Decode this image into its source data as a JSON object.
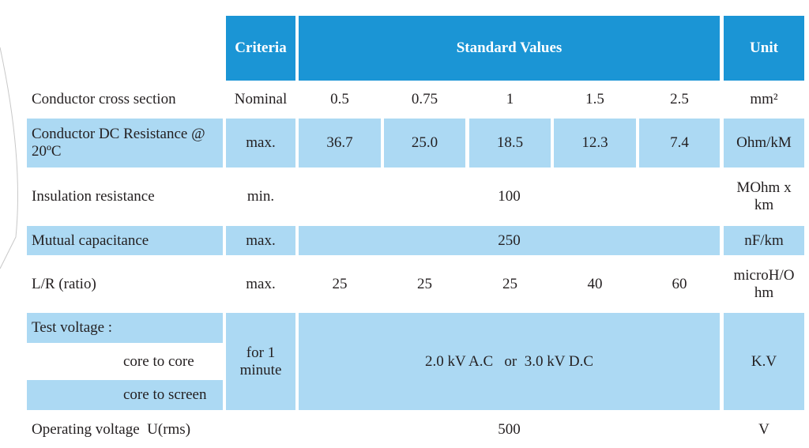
{
  "table": {
    "header": [
      "Criteria",
      "Standard Values",
      "Unit"
    ],
    "rows": [
      {
        "label": "Conductor cross section",
        "criteria": "Nominal",
        "values": [
          "0.5",
          "0.75",
          "1",
          "1.5",
          "2.5"
        ],
        "unit": "mm²"
      },
      {
        "label": "Conductor DC Resistance @ 20ºC",
        "criteria": "max.",
        "values": [
          "36.7",
          "25.0",
          "18.5",
          "12.3",
          "7.4"
        ],
        "unit": "Ohm/kM"
      },
      {
        "label": "Insulation resistance",
        "criteria": "min.",
        "value": "100",
        "unit": "MOhm x km"
      },
      {
        "label": "Mutual capacitance",
        "criteria": "max.",
        "value": "250",
        "unit": "nF/km"
      },
      {
        "label": "L/R (ratio)",
        "criteria": "max.",
        "values": [
          "25",
          "25",
          "25",
          "40",
          "60"
        ],
        "unit": "microH/Ohm"
      },
      {
        "label": "Test voltage :",
        "sublabels": [
          "core to core",
          "core to screen"
        ],
        "criteria": "for 1 minute",
        "value": "2.0 kV A.C   or  3.0 kV D.C",
        "unit": "K.V"
      },
      {
        "label": "Operating voltage  U(rms)",
        "value": "500",
        "unit": "V"
      }
    ]
  }
}
